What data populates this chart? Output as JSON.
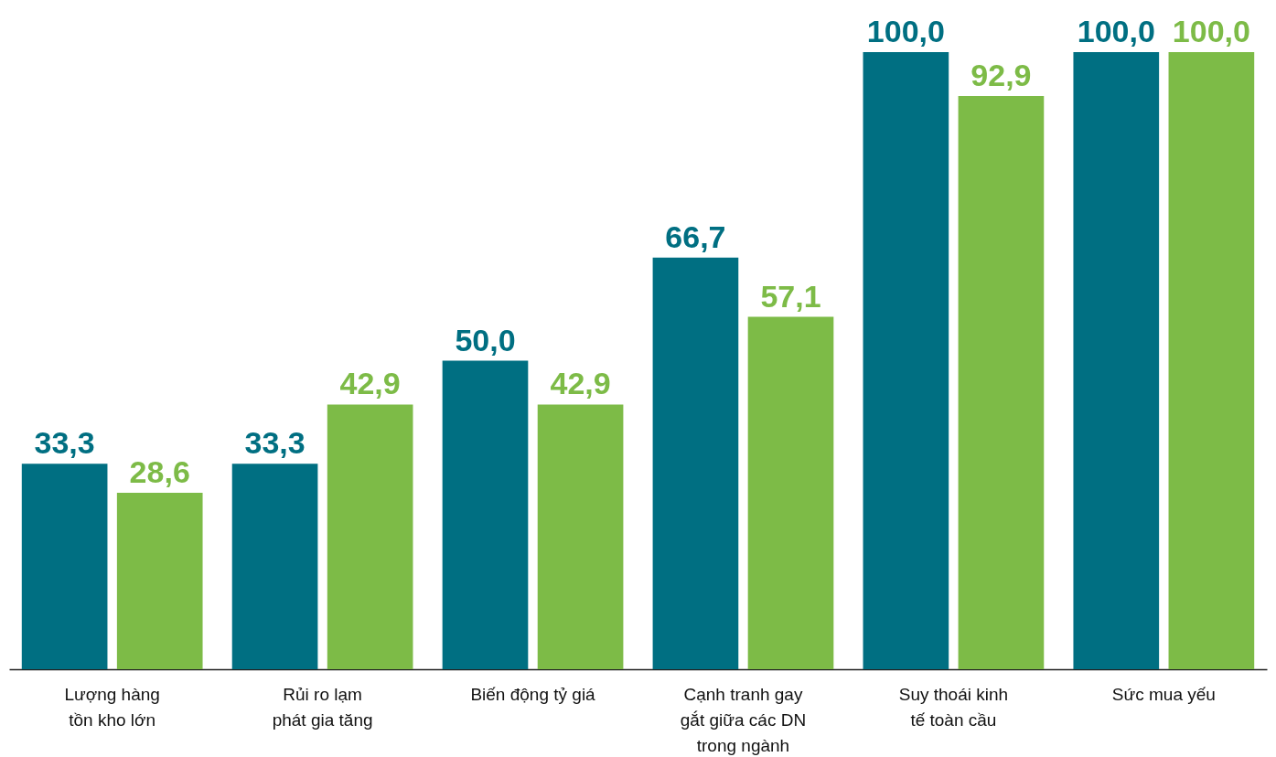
{
  "chart_data": {
    "type": "bar",
    "categories": [
      "Lượng hàng tồn kho lớn",
      "Rủi ro lạm phát gia tăng",
      "Biến động tỷ giá",
      "Cạnh tranh gay gắt giữa các DN trong ngành",
      "Suy thoái kinh tế toàn cầu",
      "Sức mua yếu"
    ],
    "series": [
      {
        "color": "#006f82",
        "values": [
          33.3,
          33.3,
          50.0,
          66.7,
          100.0,
          100.0
        ],
        "value_labels": [
          "33,3",
          "33,3",
          "50,0",
          "66,7",
          "100,0",
          "100,0"
        ]
      },
      {
        "color": "#7dbb47",
        "values": [
          28.6,
          42.9,
          42.9,
          57.1,
          92.9,
          100.0
        ],
        "value_labels": [
          "28,6",
          "42,9",
          "42,9",
          "57,1",
          "92,9",
          "100,0"
        ]
      }
    ]
  }
}
